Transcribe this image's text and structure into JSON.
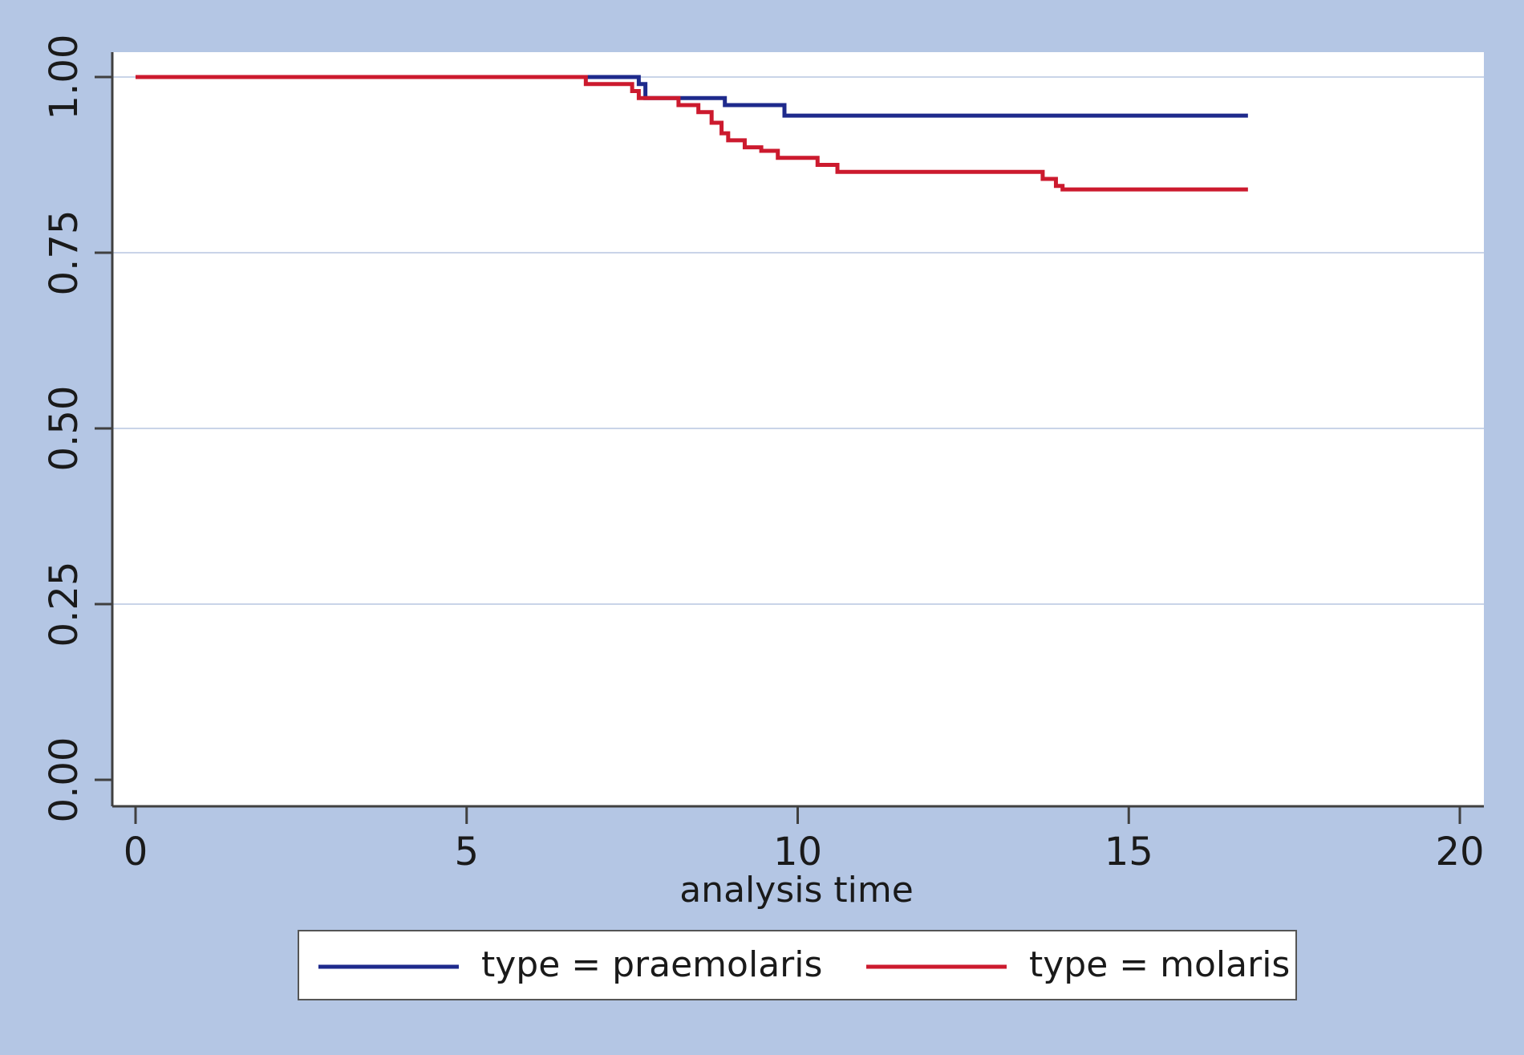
{
  "chart_data": {
    "type": "line",
    "step": true,
    "title": "",
    "xlabel": "analysis time",
    "ylabel": "",
    "xlim": [
      0,
      20
    ],
    "ylim": [
      0,
      1
    ],
    "xticks": [
      0,
      5,
      10,
      15,
      20
    ],
    "xtick_labels": [
      "0",
      "5",
      "10",
      "15",
      "20"
    ],
    "yticks": [
      0,
      0.25,
      0.5,
      0.75,
      1
    ],
    "ytick_labels": [
      "0.00",
      "0.25",
      "0.50",
      "0.75",
      "1.00"
    ],
    "grid": "horizontal",
    "legend_position": "bottom",
    "colors": {
      "background": "#b4c6e4",
      "plot_area": "#ffffff",
      "grid": "#c9d4e8",
      "axis": "#404040"
    },
    "series": [
      {
        "name": "type = praemolaris",
        "color": "#1e2a8c",
        "x": [
          0,
          7.6,
          7.7,
          8.9,
          9.8,
          16.8
        ],
        "y": [
          1.0,
          0.99,
          0.97,
          0.96,
          0.945,
          0.945
        ]
      },
      {
        "name": "type = molaris",
        "color": "#cc1a2e",
        "x": [
          0,
          6.8,
          7.5,
          7.6,
          8.2,
          8.5,
          8.7,
          8.85,
          8.95,
          9.2,
          9.45,
          9.7,
          10.3,
          10.6,
          13.7,
          13.9,
          14.0,
          16.8
        ],
        "y": [
          1.0,
          0.99,
          0.98,
          0.97,
          0.96,
          0.95,
          0.935,
          0.92,
          0.91,
          0.9,
          0.895,
          0.885,
          0.875,
          0.865,
          0.855,
          0.845,
          0.84,
          0.84
        ]
      }
    ]
  }
}
